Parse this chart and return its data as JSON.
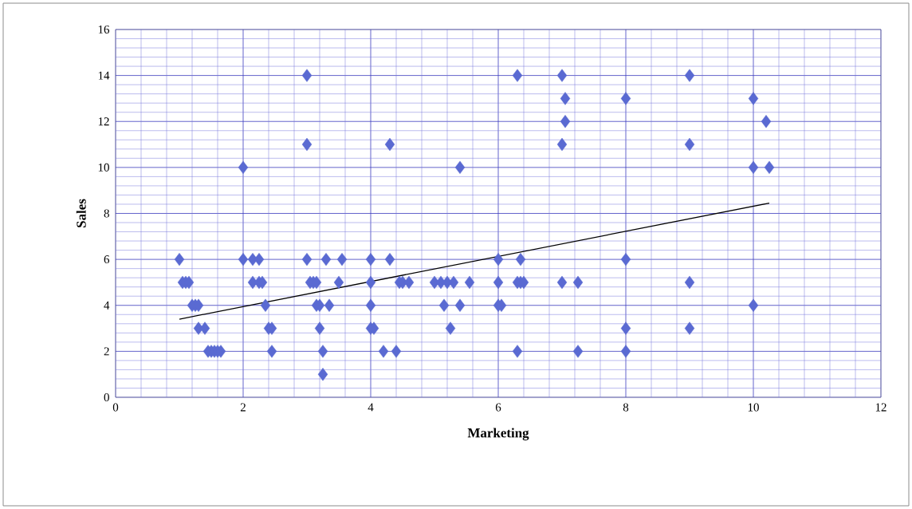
{
  "chart_data": {
    "type": "scatter",
    "xlabel": "Marketing",
    "ylabel": "Sales",
    "xlim": [
      0,
      12
    ],
    "ylim": [
      0,
      16
    ],
    "xticks": [
      0,
      {
        "value": 0.4,
        "label": null
      },
      {
        "value": 0.8,
        "label": null
      },
      {
        "value": 1.2,
        "label": null
      },
      {
        "value": 1.6,
        "label": null
      },
      2,
      {
        "value": 2.4,
        "label": null
      },
      {
        "value": 2.8,
        "label": null
      },
      {
        "value": 3.2,
        "label": null
      },
      {
        "value": 3.6,
        "label": null
      },
      4,
      {
        "value": 4.4,
        "label": null
      },
      {
        "value": 4.8,
        "label": null
      },
      {
        "value": 5.2,
        "label": null
      },
      {
        "value": 5.6,
        "label": null
      },
      6,
      {
        "value": 6.4,
        "label": null
      },
      {
        "value": 6.8,
        "label": null
      },
      {
        "value": 7.2,
        "label": null
      },
      {
        "value": 7.6,
        "label": null
      },
      8,
      {
        "value": 8.4,
        "label": null
      },
      {
        "value": 8.8,
        "label": null
      },
      {
        "value": 9.2,
        "label": null
      },
      {
        "value": 9.6,
        "label": null
      },
      10,
      {
        "value": 10.4,
        "label": null
      },
      {
        "value": 10.8,
        "label": null
      },
      {
        "value": 11.2,
        "label": null
      },
      {
        "value": 11.6,
        "label": null
      },
      12
    ],
    "yticks": [
      0,
      {
        "value": 0.4,
        "label": null
      },
      {
        "value": 0.8,
        "label": null
      },
      {
        "value": 1.2,
        "label": null
      },
      {
        "value": 1.6,
        "label": null
      },
      2,
      {
        "value": 2.4,
        "label": null
      },
      {
        "value": 2.8,
        "label": null
      },
      {
        "value": 3.2,
        "label": null
      },
      {
        "value": 3.6,
        "label": null
      },
      4,
      {
        "value": 4.4,
        "label": null
      },
      {
        "value": 4.8,
        "label": null
      },
      {
        "value": 5.2,
        "label": null
      },
      {
        "value": 5.6,
        "label": null
      },
      6,
      {
        "value": 6.4,
        "label": null
      },
      {
        "value": 6.8,
        "label": null
      },
      {
        "value": 7.2,
        "label": null
      },
      {
        "value": 7.6,
        "label": null
      },
      8,
      {
        "value": 8.4,
        "label": null
      },
      {
        "value": 8.8,
        "label": null
      },
      {
        "value": 9.2,
        "label": null
      },
      {
        "value": 9.6,
        "label": null
      },
      10,
      {
        "value": 10.4,
        "label": null
      },
      {
        "value": 10.8,
        "label": null
      },
      {
        "value": 11.2,
        "label": null
      },
      {
        "value": 11.6,
        "label": null
      },
      12,
      {
        "value": 12.4,
        "label": null
      },
      {
        "value": 12.8,
        "label": null
      },
      {
        "value": 13.2,
        "label": null
      },
      {
        "value": 13.6,
        "label": null
      },
      14,
      {
        "value": 14.4,
        "label": null
      },
      {
        "value": 14.8,
        "label": null
      },
      {
        "value": 15.2,
        "label": null
      },
      {
        "value": 15.6,
        "label": null
      },
      16
    ],
    "grid": true,
    "marker": "diamond",
    "series": [
      {
        "color": "#5a6ad2",
        "x": [
          3.0,
          6.3,
          7.0,
          9.0,
          7.05,
          8.0,
          10.0,
          7.05,
          10.2,
          3.0,
          4.3,
          7.0,
          9.0,
          2.0,
          5.4,
          10.0,
          10.25,
          1.0,
          2.0,
          2.15,
          2.25,
          3.0,
          3.3,
          3.55,
          4.0,
          4.3,
          6.0,
          6.35,
          8.0,
          1.05,
          1.1,
          1.15,
          2.15,
          2.25,
          2.3,
          3.05,
          3.1,
          3.15,
          3.5,
          4.0,
          4.45,
          4.5,
          4.6,
          5.0,
          5.1,
          5.2,
          5.3,
          5.55,
          6.0,
          6.3,
          6.35,
          6.4,
          7.0,
          7.25,
          9.0,
          1.2,
          1.25,
          1.3,
          2.35,
          3.15,
          3.2,
          3.35,
          4.0,
          5.15,
          5.4,
          6.0,
          6.05,
          10.0,
          1.3,
          1.4,
          2.4,
          2.45,
          3.2,
          4.0,
          4.05,
          5.25,
          8.0,
          9.0,
          1.45,
          1.5,
          1.55,
          1.6,
          1.65,
          2.45,
          3.25,
          4.2,
          4.4,
          6.3,
          7.25,
          8.0,
          3.25
        ],
        "values": [
          14,
          14,
          14,
          14,
          13,
          13,
          13,
          12,
          12,
          11,
          11,
          11,
          11,
          10,
          10,
          10,
          10,
          6,
          6,
          6,
          6,
          6,
          6,
          6,
          6,
          6,
          6,
          6,
          6,
          5,
          5,
          5,
          5,
          5,
          5,
          5,
          5,
          5,
          5,
          5,
          5,
          5,
          5,
          5,
          5,
          5,
          5,
          5,
          5,
          5,
          5,
          5,
          5,
          5,
          5,
          4,
          4,
          4,
          4,
          4,
          4,
          4,
          4,
          4,
          4,
          4,
          4,
          4,
          3,
          3,
          3,
          3,
          3,
          3,
          3,
          3,
          3,
          3,
          2,
          2,
          2,
          2,
          2,
          2,
          2,
          2,
          2,
          2,
          2,
          2,
          1
        ]
      },
      {
        "type": "line",
        "color": "#000000",
        "marker": "none",
        "x": [
          1.0,
          10.25
        ],
        "values": [
          3.4,
          8.45
        ]
      }
    ]
  }
}
